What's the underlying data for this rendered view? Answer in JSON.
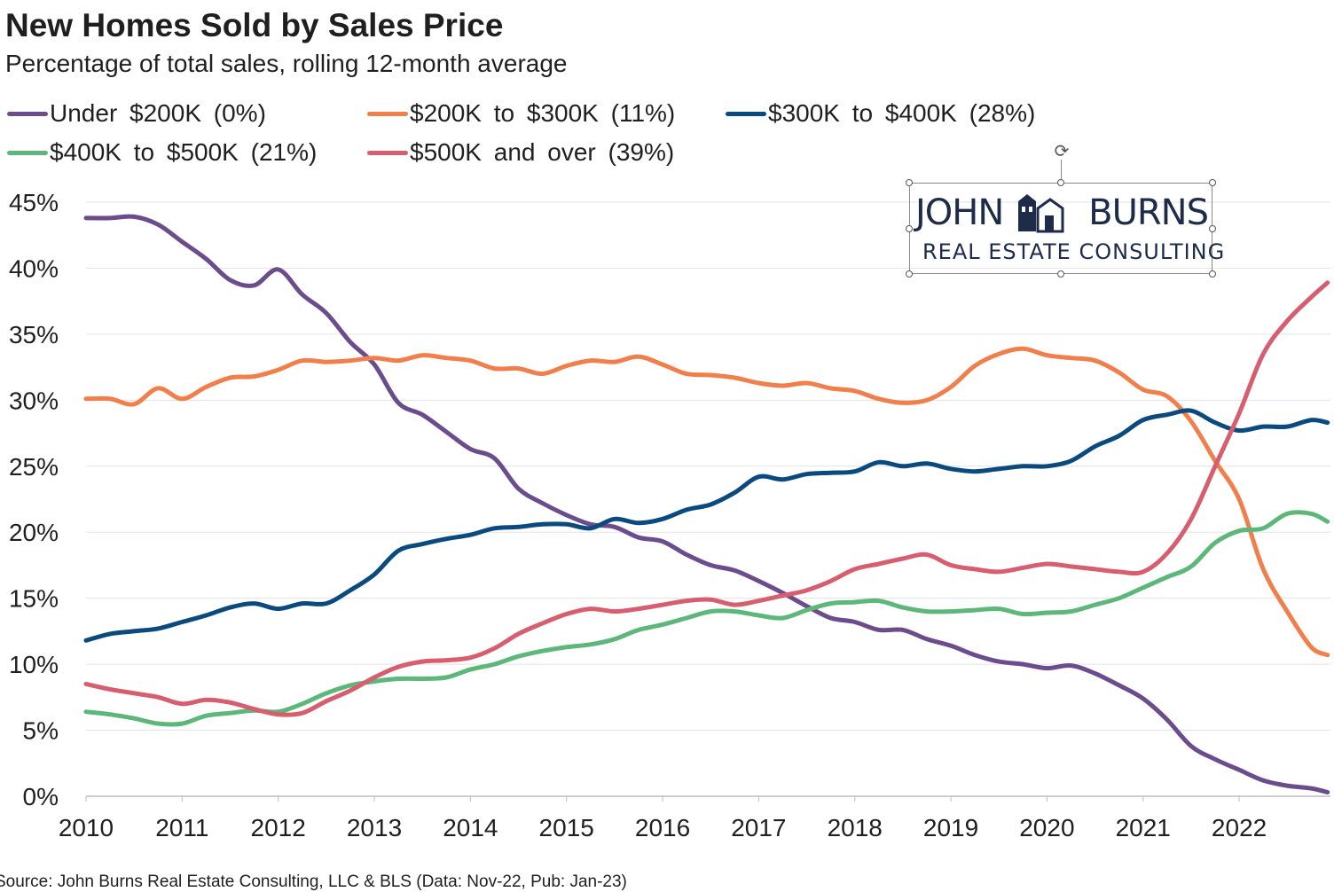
{
  "header": {
    "title": "New Homes Sold by Sales Price",
    "subtitle": "Percentage of total sales, rolling 12-month average"
  },
  "legend": {
    "items": [
      {
        "label": "Under $200K (0%)",
        "color": "#6b4c8c"
      },
      {
        "label": "$200K to $300K (11%)",
        "color": "#f07f4c"
      },
      {
        "label": "$300K to $400K (28%)",
        "color": "#0b4a7e"
      },
      {
        "label": "$400K to $500K (21%)",
        "color": "#5db77a"
      },
      {
        "label": "$500K and over (39%)",
        "color": "#d65e6e"
      }
    ]
  },
  "logo": {
    "name_left": "JOHN",
    "name_right": "BURNS",
    "tagline": "REAL ESTATE CONSULTING",
    "icon": "house-logo-icon",
    "rotate_icon": "rotate-handle-icon"
  },
  "source": "Source: John Burns Real Estate Consulting, LLC & BLS (Data: Nov-22, Pub: Jan-23)",
  "chart_data": {
    "type": "line",
    "title": "New Homes Sold by Sales Price",
    "subtitle": "Percentage of total sales, rolling 12-month average",
    "xlabel": "",
    "ylabel": "",
    "x_ticks": [
      "2010",
      "2011",
      "2012",
      "2013",
      "2014",
      "2015",
      "2016",
      "2017",
      "2018",
      "2019",
      "2020",
      "2021",
      "2022"
    ],
    "y_ticks": [
      "0%",
      "5%",
      "10%",
      "15%",
      "20%",
      "25%",
      "30%",
      "35%",
      "40%",
      "45%"
    ],
    "xlim": [
      2010.0,
      2022.95
    ],
    "ylim": [
      0,
      45
    ],
    "grid": "horizontal",
    "legend_position": "top",
    "series": [
      {
        "name": "Under $200K (0%)",
        "color": "#6b4c8c",
        "x": [
          2010.0,
          2010.25,
          2010.5,
          2010.75,
          2011.0,
          2011.25,
          2011.5,
          2011.75,
          2012.0,
          2012.25,
          2012.5,
          2012.75,
          2013.0,
          2013.25,
          2013.5,
          2013.75,
          2014.0,
          2014.25,
          2014.5,
          2014.75,
          2015.0,
          2015.25,
          2015.5,
          2015.75,
          2016.0,
          2016.25,
          2016.5,
          2016.75,
          2017.0,
          2017.25,
          2017.5,
          2017.75,
          2018.0,
          2018.25,
          2018.5,
          2018.75,
          2019.0,
          2019.25,
          2019.5,
          2019.75,
          2020.0,
          2020.25,
          2020.5,
          2020.75,
          2021.0,
          2021.25,
          2021.5,
          2021.75,
          2022.0,
          2022.25,
          2022.5,
          2022.75,
          2022.92
        ],
        "y": [
          43.8,
          43.8,
          43.9,
          43.3,
          42.0,
          40.7,
          39.1,
          38.7,
          39.9,
          38.0,
          36.6,
          34.4,
          32.7,
          29.8,
          28.9,
          27.6,
          26.3,
          25.6,
          23.3,
          22.2,
          21.3,
          20.6,
          20.4,
          19.6,
          19.3,
          18.3,
          17.5,
          17.1,
          16.3,
          15.4,
          14.4,
          13.5,
          13.2,
          12.6,
          12.6,
          11.9,
          11.4,
          10.7,
          10.2,
          10.0,
          9.7,
          9.9,
          9.3,
          8.4,
          7.4,
          5.8,
          3.8,
          2.8,
          2.0,
          1.2,
          0.8,
          0.6,
          0.3
        ]
      },
      {
        "name": "$200K to $300K (11%)",
        "color": "#f07f4c",
        "x": [
          2010.0,
          2010.25,
          2010.5,
          2010.75,
          2011.0,
          2011.25,
          2011.5,
          2011.75,
          2012.0,
          2012.25,
          2012.5,
          2012.75,
          2013.0,
          2013.25,
          2013.5,
          2013.75,
          2014.0,
          2014.25,
          2014.5,
          2014.75,
          2015.0,
          2015.25,
          2015.5,
          2015.75,
          2016.0,
          2016.25,
          2016.5,
          2016.75,
          2017.0,
          2017.25,
          2017.5,
          2017.75,
          2018.0,
          2018.25,
          2018.5,
          2018.75,
          2019.0,
          2019.25,
          2019.5,
          2019.75,
          2020.0,
          2020.25,
          2020.5,
          2020.75,
          2021.0,
          2021.25,
          2021.5,
          2021.75,
          2022.0,
          2022.25,
          2022.5,
          2022.75,
          2022.92
        ],
        "y": [
          30.1,
          30.1,
          29.7,
          30.9,
          30.1,
          31.0,
          31.7,
          31.8,
          32.3,
          33.0,
          32.9,
          33.0,
          33.2,
          33.0,
          33.4,
          33.2,
          33.0,
          32.4,
          32.4,
          32.0,
          32.6,
          33.0,
          32.9,
          33.3,
          32.7,
          32.0,
          31.9,
          31.7,
          31.3,
          31.1,
          31.3,
          30.9,
          30.7,
          30.1,
          29.8,
          30.0,
          31.0,
          32.6,
          33.5,
          33.9,
          33.4,
          33.2,
          33.0,
          32.1,
          30.8,
          30.3,
          28.4,
          25.4,
          22.5,
          17.2,
          14.0,
          11.3,
          10.7
        ]
      },
      {
        "name": "$300K to $400K (28%)",
        "color": "#0b4a7e",
        "x": [
          2010.0,
          2010.25,
          2010.5,
          2010.75,
          2011.0,
          2011.25,
          2011.5,
          2011.75,
          2012.0,
          2012.25,
          2012.5,
          2012.75,
          2013.0,
          2013.25,
          2013.5,
          2013.75,
          2014.0,
          2014.25,
          2014.5,
          2014.75,
          2015.0,
          2015.25,
          2015.5,
          2015.75,
          2016.0,
          2016.25,
          2016.5,
          2016.75,
          2017.0,
          2017.25,
          2017.5,
          2017.75,
          2018.0,
          2018.25,
          2018.5,
          2018.75,
          2019.0,
          2019.25,
          2019.5,
          2019.75,
          2020.0,
          2020.25,
          2020.5,
          2020.75,
          2021.0,
          2021.25,
          2021.5,
          2021.75,
          2022.0,
          2022.25,
          2022.5,
          2022.75,
          2022.92
        ],
        "y": [
          11.8,
          12.3,
          12.5,
          12.7,
          13.2,
          13.7,
          14.3,
          14.6,
          14.2,
          14.6,
          14.6,
          15.6,
          16.8,
          18.6,
          19.1,
          19.5,
          19.8,
          20.3,
          20.4,
          20.6,
          20.6,
          20.3,
          21.0,
          20.7,
          21.0,
          21.7,
          22.1,
          23.0,
          24.2,
          24.0,
          24.4,
          24.5,
          24.6,
          25.3,
          25.0,
          25.2,
          24.8,
          24.6,
          24.8,
          25.0,
          25.0,
          25.4,
          26.5,
          27.3,
          28.5,
          28.9,
          29.2,
          28.3,
          27.7,
          28.0,
          28.0,
          28.5,
          28.3
        ]
      },
      {
        "name": "$400K to $500K (21%)",
        "color": "#5db77a",
        "x": [
          2010.0,
          2010.25,
          2010.5,
          2010.75,
          2011.0,
          2011.25,
          2011.5,
          2011.75,
          2012.0,
          2012.25,
          2012.5,
          2012.75,
          2013.0,
          2013.25,
          2013.5,
          2013.75,
          2014.0,
          2014.25,
          2014.5,
          2014.75,
          2015.0,
          2015.25,
          2015.5,
          2015.75,
          2016.0,
          2016.25,
          2016.5,
          2016.75,
          2017.0,
          2017.25,
          2017.5,
          2017.75,
          2018.0,
          2018.25,
          2018.5,
          2018.75,
          2019.0,
          2019.25,
          2019.5,
          2019.75,
          2020.0,
          2020.25,
          2020.5,
          2020.75,
          2021.0,
          2021.25,
          2021.5,
          2021.75,
          2022.0,
          2022.25,
          2022.5,
          2022.75,
          2022.92
        ],
        "y": [
          6.4,
          6.2,
          5.9,
          5.5,
          5.5,
          6.1,
          6.3,
          6.5,
          6.4,
          7.0,
          7.8,
          8.4,
          8.7,
          8.9,
          8.9,
          9.0,
          9.6,
          10.0,
          10.6,
          11.0,
          11.3,
          11.5,
          11.9,
          12.6,
          13.0,
          13.5,
          14.0,
          14.0,
          13.7,
          13.5,
          14.1,
          14.6,
          14.7,
          14.8,
          14.3,
          14.0,
          14.0,
          14.1,
          14.2,
          13.8,
          13.9,
          14.0,
          14.5,
          15.0,
          15.8,
          16.6,
          17.4,
          19.2,
          20.1,
          20.3,
          21.4,
          21.4,
          20.8
        ]
      },
      {
        "name": "$500K and over (39%)",
        "color": "#d65e6e",
        "x": [
          2010.0,
          2010.25,
          2010.5,
          2010.75,
          2011.0,
          2011.25,
          2011.5,
          2011.75,
          2012.0,
          2012.25,
          2012.5,
          2012.75,
          2013.0,
          2013.25,
          2013.5,
          2013.75,
          2014.0,
          2014.25,
          2014.5,
          2014.75,
          2015.0,
          2015.25,
          2015.5,
          2015.75,
          2016.0,
          2016.25,
          2016.5,
          2016.75,
          2017.0,
          2017.25,
          2017.5,
          2017.75,
          2018.0,
          2018.25,
          2018.5,
          2018.75,
          2019.0,
          2019.25,
          2019.5,
          2019.75,
          2020.0,
          2020.25,
          2020.5,
          2020.75,
          2021.0,
          2021.25,
          2021.5,
          2021.75,
          2022.0,
          2022.25,
          2022.5,
          2022.75,
          2022.92
        ],
        "y": [
          8.5,
          8.1,
          7.8,
          7.5,
          7.0,
          7.3,
          7.1,
          6.6,
          6.2,
          6.3,
          7.2,
          8.0,
          9.0,
          9.8,
          10.2,
          10.3,
          10.5,
          11.2,
          12.3,
          13.1,
          13.8,
          14.2,
          14.0,
          14.2,
          14.5,
          14.8,
          14.9,
          14.5,
          14.8,
          15.2,
          15.6,
          16.3,
          17.2,
          17.6,
          18.0,
          18.3,
          17.5,
          17.2,
          17.0,
          17.3,
          17.6,
          17.4,
          17.2,
          17.0,
          17.0,
          18.4,
          21.0,
          25.0,
          29.0,
          33.5,
          36.0,
          37.8,
          38.9
        ]
      }
    ]
  }
}
